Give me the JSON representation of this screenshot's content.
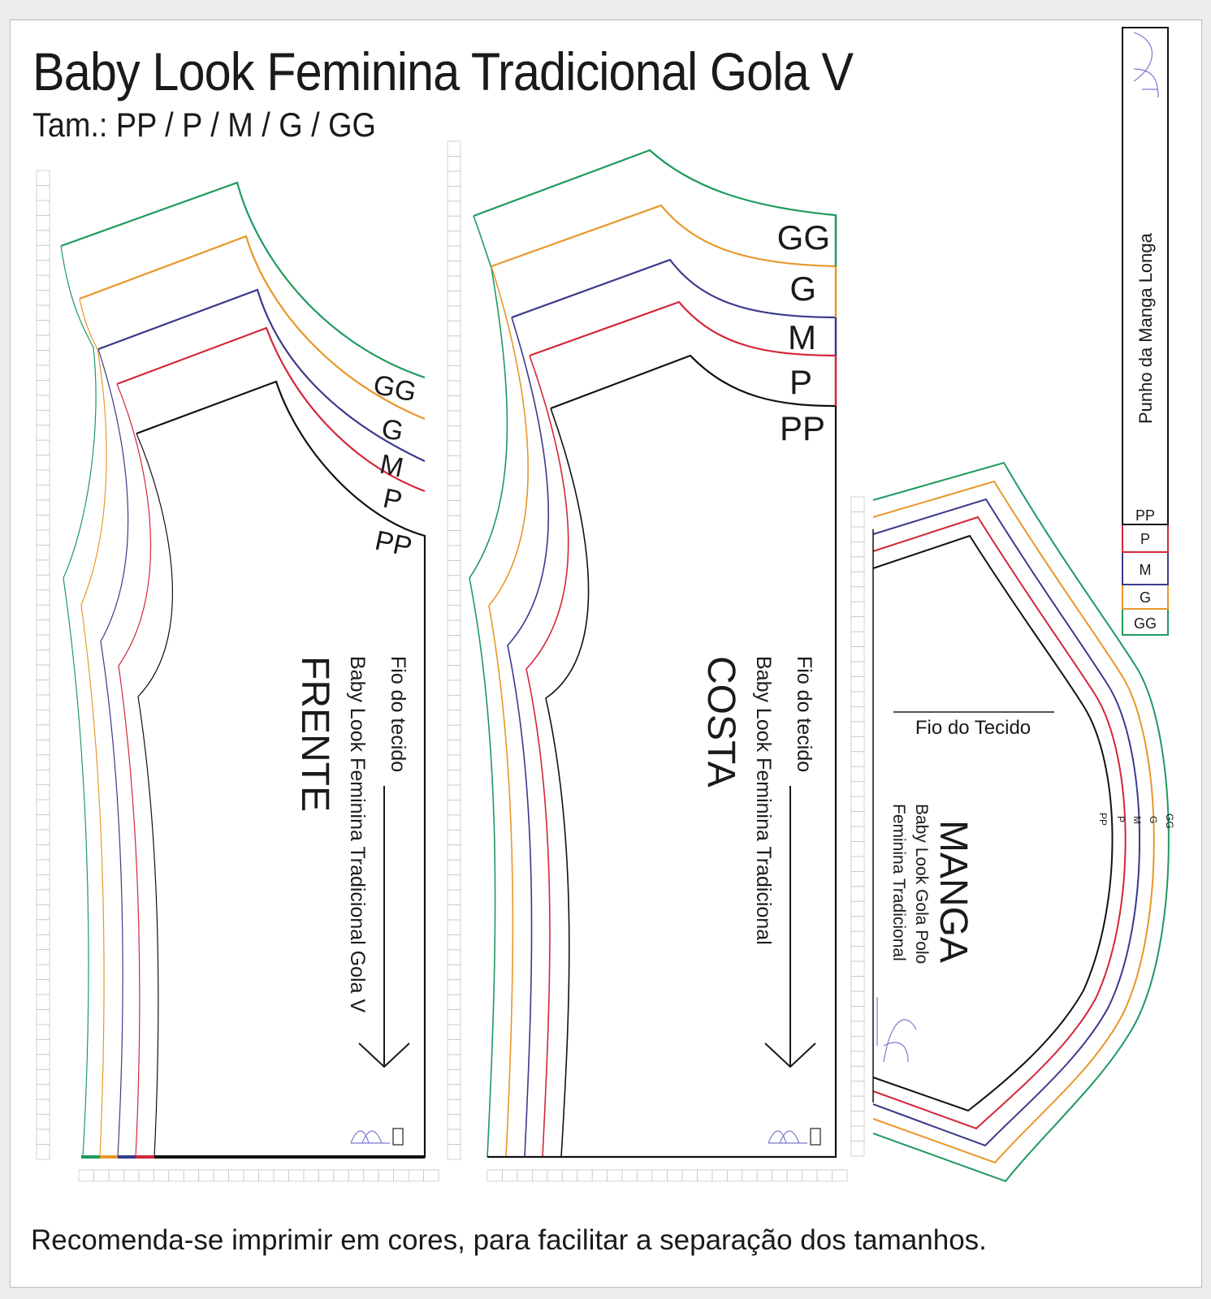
{
  "title": "Baby Look Feminina Tradicional Gola V",
  "subtitle": "Tam.: PP / P / M / G / GG",
  "footer": "Recomenda-se imprimir em cores, para facilitar a separação dos tamanhos.",
  "colors": {
    "GG": "#1f9a5e",
    "G": "#e8972a",
    "M": "#3b3a8c",
    "P": "#d3263a",
    "PP": "#111111"
  },
  "sizes": [
    "PP",
    "P",
    "M",
    "G",
    "GG"
  ],
  "front": {
    "piece_name": "FRENTE",
    "pattern_name": "Baby Look Feminina Tradicional Gola V",
    "grain_label": "Fio do tecido"
  },
  "back": {
    "piece_name": "COSTA",
    "pattern_name": "Baby Look Feminina Tradicional",
    "grain_label": "Fio do tecido"
  },
  "sleeve": {
    "piece_name": "MANGA",
    "pattern_name_1": "Baby Look Gola Polo",
    "pattern_name_2": "Feminina Tradicional",
    "grain_label": "Fio do Tecido"
  },
  "cuff": {
    "label": "Punho da Manga Longa",
    "sizes": [
      "PP",
      "P",
      "M",
      "G",
      "GG"
    ]
  },
  "logo_icon": "sewing-logo-icon"
}
